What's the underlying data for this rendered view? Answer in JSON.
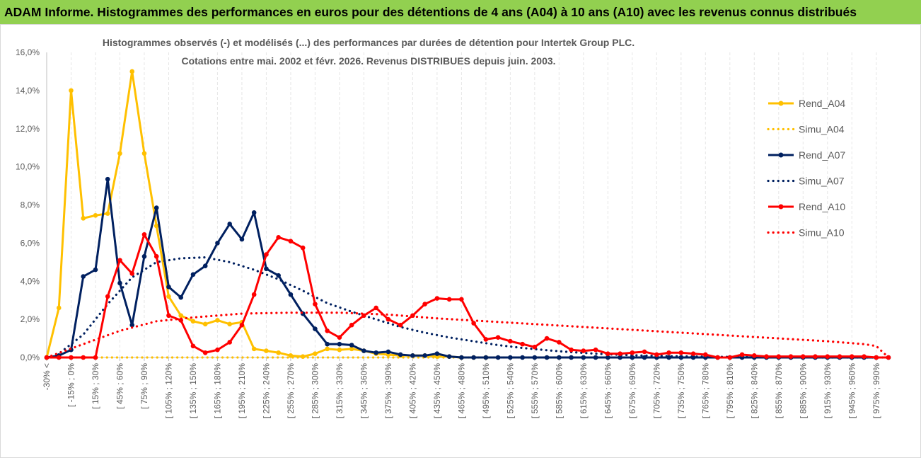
{
  "banner": {
    "title": "ADAM Informe. Histogrammes des performances en euros pour des détentions de 4 ans (A04) à 10 ans (A10) avec les revenus connus distribués"
  },
  "colors": {
    "banner_bg": "#92D050",
    "A04": "#FFC000",
    "A07": "#002060",
    "A10": "#FF0000",
    "axis": "#bfbfbf",
    "text": "#595959"
  },
  "chart_data": {
    "type": "line",
    "title": [
      "Histogrammes observés (-) et modélisés (...) des performances par durées de détention pour Intertek Group PLC.",
      "Cotations entre mai. 2002 et févr. 2026. Revenus DISTRIBUES depuis juin. 2003."
    ],
    "xlabel": "",
    "ylabel": "",
    "ylim": [
      0,
      16
    ],
    "yticks": [
      "0,0%",
      "2,0%",
      "4,0%",
      "6,0%",
      "8,0%",
      "10,0%",
      "12,0%",
      "14,0%",
      "16,0%"
    ],
    "x_labels": [
      "-30% <",
      "[ -15% ; 0% ",
      "[ 15% ; 30% ",
      "[ 45% ; 60% ",
      "[ 75% ; 90% ",
      "[ 105% ; 120% ",
      "[ 135% ; 150% ",
      "[ 165% ; 180% ",
      "[ 195% ; 210% ",
      "[ 225% ; 240% ",
      "[ 255% ; 270% ",
      "[ 285% ; 300% ",
      "[ 315% ; 330% ",
      "[ 345% ; 360% ",
      "[ 375% ; 390% ",
      "[ 405% ; 420% ",
      "[ 435% ; 450% ",
      "[ 465% ; 480% ",
      "[ 495% ; 510% ",
      "[ 525% ; 540% ",
      "[ 555% ; 570% ",
      "[ 585% ; 600% ",
      "[ 615% ; 630% ",
      "[ 645% ; 660% ",
      "[ 675% ; 690% ",
      "[ 705% ; 720% ",
      "[ 735% ; 750% ",
      "[ 765% ; 780% ",
      "[ 795% ; 810% ",
      "[ 825% ; 840% ",
      "[ 855% ; 870% ",
      "[ 885% ; 900% ",
      "[ 915% ; 930% ",
      "[ 945% ; 960% ",
      "[ 975% ; 990% "
    ],
    "legend_position": "right",
    "series": [
      {
        "name": "Rend_A04",
        "style": "solid",
        "color": "#FFC000",
        "values": [
          0,
          2.6,
          14,
          7.3,
          7.45,
          7.55,
          10.7,
          15,
          10.7,
          6.9,
          3.2,
          2.2,
          1.9,
          1.75,
          1.95,
          1.75,
          1.85,
          0.45,
          0.35,
          0.25,
          0.1,
          0.05,
          0.2,
          0.45,
          0.4,
          0.45,
          0.35,
          0.2,
          0.15,
          0.1,
          0.1,
          0.1,
          0.05,
          0.05,
          0,
          0,
          0
        ]
      },
      {
        "name": "Simu_A04",
        "style": "dotted",
        "color": "#FFC000",
        "values": [
          0,
          0,
          0,
          0,
          0,
          0,
          0,
          0,
          0,
          0,
          0,
          0,
          0,
          0,
          0,
          0,
          0,
          0,
          0,
          0,
          0,
          0,
          0,
          0,
          0,
          0,
          0,
          0,
          0,
          0,
          0,
          0,
          0,
          0,
          0,
          0,
          0
        ]
      },
      {
        "name": "Rend_A07",
        "style": "solid",
        "color": "#002060",
        "values": [
          0,
          0.1,
          0.4,
          4.25,
          4.6,
          9.35,
          3.9,
          1.7,
          5.3,
          7.85,
          3.7,
          3.15,
          4.35,
          4.8,
          6.0,
          7.0,
          6.2,
          7.6,
          4.65,
          4.3,
          3.3,
          2.3,
          1.5,
          0.7,
          0.7,
          0.65,
          0.35,
          0.25,
          0.3,
          0.15,
          0.1,
          0.1,
          0.2,
          0.05,
          0,
          0,
          0,
          0,
          0,
          0,
          0,
          0,
          0,
          0,
          0,
          0,
          0,
          0,
          0,
          0,
          0,
          0,
          0,
          0,
          0,
          0,
          0,
          0,
          0,
          0,
          0,
          0,
          0,
          0,
          0,
          0,
          0,
          0,
          0,
          0
        ]
      },
      {
        "name": "Simu_A07",
        "style": "dotted",
        "color": "#002060",
        "knots": [
          [
            0,
            0
          ],
          [
            1,
            0.2
          ],
          [
            3,
            1.2
          ],
          [
            5,
            2.8
          ],
          [
            7,
            4.2
          ],
          [
            9,
            5.0
          ],
          [
            11,
            5.2
          ],
          [
            13,
            5.25
          ],
          [
            15,
            5.0
          ],
          [
            17,
            4.6
          ],
          [
            19,
            4.1
          ],
          [
            21,
            3.5
          ],
          [
            23,
            2.85
          ],
          [
            25,
            2.4
          ],
          [
            27,
            2.0
          ],
          [
            29,
            1.6
          ],
          [
            31,
            1.3
          ],
          [
            33,
            1.05
          ],
          [
            35,
            0.85
          ],
          [
            37,
            0.65
          ],
          [
            39,
            0.5
          ],
          [
            41,
            0.38
          ],
          [
            43,
            0.28
          ],
          [
            45,
            0.2
          ],
          [
            47,
            0.14
          ],
          [
            49,
            0.1
          ],
          [
            51,
            0.07
          ],
          [
            53,
            0.05
          ],
          [
            56,
            0.03
          ],
          [
            60,
            0.01
          ],
          [
            64,
            0
          ],
          [
            69,
            0
          ]
        ]
      },
      {
        "name": "Rend_A10",
        "style": "solid",
        "color": "#FF0000",
        "values": [
          0,
          0,
          0,
          0,
          0,
          3.2,
          5.1,
          4.4,
          6.45,
          5.3,
          2.2,
          1.95,
          0.6,
          0.25,
          0.4,
          0.8,
          1.7,
          3.3,
          5.4,
          6.3,
          6.1,
          5.75,
          2.8,
          1.4,
          1.05,
          1.7,
          2.2,
          2.6,
          2.0,
          1.7,
          2.2,
          2.8,
          3.1,
          3.05,
          3.05,
          1.8,
          0.95,
          1.05,
          0.85,
          0.7,
          0.55,
          1.0,
          0.8,
          0.4,
          0.35,
          0.4,
          0.2,
          0.2,
          0.25,
          0.3,
          0.15,
          0.25,
          0.25,
          0.2,
          0.15,
          0,
          0,
          0.15,
          0.1,
          0.05,
          0.05,
          0.05,
          0.05,
          0.05,
          0.05,
          0.05,
          0.05,
          0.05,
          0,
          0
        ]
      },
      {
        "name": "Simu_A10",
        "style": "dotted",
        "color": "#FF0000",
        "knots": [
          [
            0,
            0
          ],
          [
            3,
            0.7
          ],
          [
            6,
            1.4
          ],
          [
            9,
            1.9
          ],
          [
            12,
            2.1
          ],
          [
            16,
            2.3
          ],
          [
            20,
            2.35
          ],
          [
            24,
            2.35
          ],
          [
            28,
            2.25
          ],
          [
            32,
            2.05
          ],
          [
            36,
            1.9
          ],
          [
            40,
            1.75
          ],
          [
            44,
            1.6
          ],
          [
            48,
            1.45
          ],
          [
            52,
            1.3
          ],
          [
            56,
            1.15
          ],
          [
            60,
            1.0
          ],
          [
            64,
            0.85
          ],
          [
            67,
            0.7
          ],
          [
            68,
            0.6
          ],
          [
            69,
            0
          ]
        ]
      }
    ]
  }
}
